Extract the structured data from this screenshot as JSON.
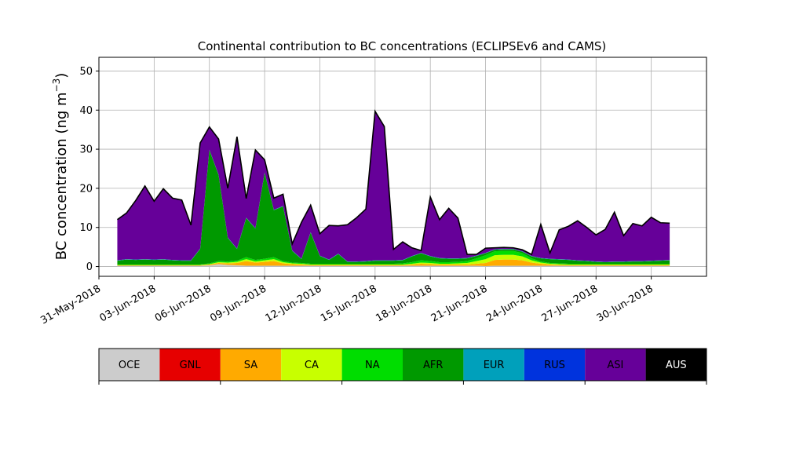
{
  "chart_data": {
    "type": "area",
    "title": "Continental contribution to BC concentrations (ECLIPSEv6 and CAMS)",
    "ylabel_main": "BC concentration (ng m",
    "ylabel_exp": "−3",
    "ylabel_close": ")",
    "xlabel": "",
    "x_range": [
      "2018-05-31",
      "2018-07-03"
    ],
    "ylim": [
      -2.5,
      53.5
    ],
    "grid": true,
    "stacked": true,
    "x_ticks": [
      "31-May-2018",
      "03-Jun-2018",
      "06-Jun-2018",
      "09-Jun-2018",
      "12-Jun-2018",
      "15-Jun-2018",
      "18-Jun-2018",
      "21-Jun-2018",
      "24-Jun-2018",
      "27-Jun-2018",
      "30-Jun-2018"
    ],
    "y_ticks": [
      0,
      10,
      20,
      30,
      40,
      50
    ],
    "x": [
      "2018-06-01",
      "2018-06-01 12:00",
      "2018-06-02",
      "2018-06-02 12:00",
      "2018-06-03",
      "2018-06-03 12:00",
      "2018-06-04",
      "2018-06-04 12:00",
      "2018-06-05",
      "2018-06-05 12:00",
      "2018-06-06",
      "2018-06-06 12:00",
      "2018-06-07",
      "2018-06-07 12:00",
      "2018-06-08",
      "2018-06-08 12:00",
      "2018-06-09",
      "2018-06-09 12:00",
      "2018-06-10",
      "2018-06-10 12:00",
      "2018-06-11",
      "2018-06-11 12:00",
      "2018-06-12",
      "2018-06-12 12:00",
      "2018-06-13",
      "2018-06-13 12:00",
      "2018-06-14",
      "2018-06-14 12:00",
      "2018-06-15",
      "2018-06-15 12:00",
      "2018-06-16",
      "2018-06-16 12:00",
      "2018-06-17",
      "2018-06-17 12:00",
      "2018-06-18",
      "2018-06-18 12:00",
      "2018-06-19",
      "2018-06-19 12:00",
      "2018-06-20",
      "2018-06-20 12:00",
      "2018-06-21",
      "2018-06-21 12:00",
      "2018-06-22",
      "2018-06-22 12:00",
      "2018-06-23",
      "2018-06-23 12:00",
      "2018-06-24",
      "2018-06-24 12:00",
      "2018-06-25",
      "2018-06-25 12:00",
      "2018-06-26",
      "2018-06-26 12:00",
      "2018-06-27",
      "2018-06-27 12:00",
      "2018-06-28",
      "2018-06-28 12:00",
      "2018-06-29",
      "2018-06-29 12:00",
      "2018-06-30",
      "2018-06-30 12:00",
      "2018-07-01"
    ],
    "series": [
      {
        "name": "OCE",
        "color": "#cccccc",
        "values": [
          0.2,
          0.2,
          0.2,
          0.2,
          0.2,
          0.2,
          0.2,
          0.2,
          0.2,
          0.2,
          0.3,
          0.6,
          0.4,
          0.3,
          0.2,
          0.2,
          0.2,
          0.2,
          0.2,
          0.2,
          0.2,
          0.2,
          0.2,
          0.2,
          0.2,
          0.2,
          0.2,
          0.2,
          0.2,
          0.2,
          0.2,
          0.2,
          0.2,
          0.2,
          0.2,
          0.2,
          0.2,
          0.2,
          0.2,
          0.2,
          0.1,
          0.2,
          0.2,
          0.2,
          0.2,
          0.2,
          0.2,
          0.2,
          0.2,
          0.2,
          0.2,
          0.2,
          0.2,
          0.2,
          0.2,
          0.2,
          0.2,
          0.2,
          0.2,
          0.2,
          0.2
        ]
      },
      {
        "name": "GNL",
        "color": "#e60000",
        "values": [
          0,
          0,
          0,
          0,
          0,
          0,
          0,
          0,
          0,
          0,
          0,
          0,
          0,
          0,
          0,
          0,
          0,
          0,
          0,
          0,
          0,
          0,
          0,
          0,
          0,
          0,
          0,
          0,
          0,
          0,
          0,
          0,
          0,
          0,
          0,
          0,
          0,
          0,
          0,
          0,
          0,
          0,
          0,
          0,
          0,
          0,
          0,
          0,
          0,
          0,
          0,
          0,
          0,
          0,
          0,
          0,
          0,
          0,
          0,
          0,
          0
        ]
      },
      {
        "name": "SA",
        "color": "#ffaa00",
        "values": [
          0.1,
          0.1,
          0.1,
          0.1,
          0.1,
          0.1,
          0.1,
          0.1,
          0.1,
          0.1,
          0.2,
          0.3,
          0.4,
          0.6,
          1.2,
          0.8,
          1.0,
          1.2,
          0.6,
          0.4,
          0.3,
          0.2,
          0.2,
          0.2,
          0.2,
          0.2,
          0.2,
          0.2,
          0.2,
          0.2,
          0.2,
          0.2,
          0.3,
          0.5,
          0.4,
          0.3,
          0.3,
          0.3,
          0.3,
          0.5,
          0.8,
          1.5,
          1.6,
          1.6,
          1.4,
          0.8,
          0.5,
          0.3,
          0.2,
          0.2,
          0.2,
          0.2,
          0.2,
          0.2,
          0.2,
          0.2,
          0.2,
          0.2,
          0.2,
          0.2,
          0.2
        ]
      },
      {
        "name": "CA",
        "color": "#c8ff00",
        "values": [
          0.1,
          0.1,
          0.1,
          0.1,
          0.1,
          0.1,
          0.1,
          0.1,
          0.1,
          0.1,
          0.1,
          0.2,
          0.2,
          0.3,
          0.5,
          0.3,
          0.4,
          0.5,
          0.3,
          0.2,
          0.2,
          0.1,
          0.1,
          0.1,
          0.1,
          0.1,
          0.1,
          0.1,
          0.1,
          0.1,
          0.1,
          0.1,
          0.2,
          0.3,
          0.3,
          0.2,
          0.2,
          0.3,
          0.4,
          0.7,
          1.0,
          1.2,
          1.2,
          1.2,
          1.0,
          0.6,
          0.3,
          0.2,
          0.2,
          0.1,
          0.1,
          0.1,
          0.1,
          0.1,
          0.1,
          0.1,
          0.1,
          0.1,
          0.1,
          0.1,
          0.1
        ]
      },
      {
        "name": "NA",
        "color": "#00dd00",
        "values": [
          0.1,
          0.1,
          0.1,
          0.1,
          0.1,
          0.1,
          0.1,
          0.1,
          0.1,
          0.1,
          0.2,
          0.3,
          0.3,
          0.3,
          0.5,
          0.4,
          0.4,
          0.5,
          0.3,
          0.2,
          0.2,
          0.2,
          0.2,
          0.2,
          0.2,
          0.2,
          0.2,
          0.2,
          0.2,
          0.2,
          0.2,
          0.3,
          0.4,
          0.6,
          0.5,
          0.4,
          0.4,
          0.4,
          0.5,
          0.7,
          1.0,
          1.0,
          1.0,
          1.0,
          0.8,
          0.5,
          0.3,
          0.2,
          0.2,
          0.2,
          0.2,
          0.2,
          0.2,
          0.2,
          0.2,
          0.2,
          0.2,
          0.2,
          0.2,
          0.2,
          0.2
        ]
      },
      {
        "name": "AFR",
        "color": "#009900",
        "values": [
          1.0,
          1.3,
          1.2,
          1.3,
          1.2,
          1.3,
          1.1,
          1.0,
          1.0,
          4.0,
          29.0,
          22.0,
          6.0,
          3.0,
          10.0,
          8.0,
          22.0,
          12.0,
          14.0,
          3.0,
          1.0,
          8.0,
          2.0,
          1.0,
          2.5,
          0.5,
          0.5,
          0.6,
          0.8,
          0.8,
          0.8,
          0.8,
          1.5,
          1.8,
          1.2,
          1.0,
          0.9,
          0.8,
          0.7,
          0.6,
          0.5,
          0.4,
          0.4,
          0.4,
          0.4,
          0.5,
          0.8,
          1.0,
          1.0,
          1.0,
          0.8,
          0.7,
          0.5,
          0.4,
          0.5,
          0.5,
          0.6,
          0.6,
          0.7,
          0.8,
          0.9
        ]
      },
      {
        "name": "EUR",
        "color": "#00a0bb",
        "values": [
          0.1,
          0.1,
          0.1,
          0.1,
          0.1,
          0.1,
          0.1,
          0.1,
          0.1,
          0.1,
          0.1,
          0.1,
          0.1,
          0.1,
          0.1,
          0.1,
          0.1,
          0.1,
          0.1,
          0.1,
          0.1,
          0.1,
          0.1,
          0.1,
          0.1,
          0.1,
          0.1,
          0.1,
          0.1,
          0.1,
          0.1,
          0.1,
          0.1,
          0.1,
          0.1,
          0.1,
          0.1,
          0.1,
          0.1,
          0.1,
          0.1,
          0.1,
          0.1,
          0.1,
          0.1,
          0.1,
          0.1,
          0.1,
          0.1,
          0.1,
          0.1,
          0.1,
          0.1,
          0.1,
          0.1,
          0.1,
          0.1,
          0.1,
          0.1,
          0.1,
          0.1
        ]
      },
      {
        "name": "RUS",
        "color": "#0033dd",
        "values": [
          0,
          0,
          0,
          0,
          0,
          0,
          0,
          0,
          0,
          0,
          0,
          0,
          0,
          0,
          0,
          0,
          0,
          0,
          0,
          0,
          0,
          0,
          0,
          0,
          0,
          0,
          0,
          0,
          0,
          0,
          0,
          0,
          0,
          0,
          0,
          0,
          0,
          0,
          0,
          0,
          0,
          0,
          0,
          0,
          0,
          0,
          0,
          0,
          0,
          0,
          0,
          0,
          0,
          0,
          0,
          0,
          0,
          0,
          0,
          0,
          0
        ]
      },
      {
        "name": "ASI",
        "color": "#660099",
        "values": [
          10.4,
          11.8,
          15.1,
          18.7,
          14.9,
          18.0,
          15.8,
          15.4,
          9.0,
          27.0,
          5.8,
          9.1,
          12.6,
          28.6,
          4.9,
          20.0,
          3.2,
          3.0,
          3.0,
          1.7,
          9.3,
          6.9,
          5.6,
          8.7,
          7.1,
          9.4,
          11.2,
          13.3,
          38.1,
          34.2,
          2.8,
          4.6,
          2.1,
          0.6,
          15.1,
          9.8,
          12.8,
          10.3,
          0.9,
          0.3,
          1.2,
          0.4,
          0.4,
          0.3,
          0.4,
          0.4,
          8.6,
          1.5,
          7.5,
          8.5,
          10.1,
          8.5,
          6.8,
          8.3,
          12.6,
          6.6,
          9.6,
          9.0,
          11.1,
          9.6,
          9.4
        ]
      },
      {
        "name": "AUS",
        "color": "#000000",
        "values": [
          0,
          0,
          0,
          0,
          0,
          0,
          0,
          0,
          0,
          0,
          0,
          0,
          0,
          0,
          0,
          0,
          0,
          0,
          0,
          0,
          0,
          0,
          0,
          0,
          0,
          0,
          0,
          0,
          0,
          0,
          0,
          0,
          0,
          0,
          0,
          0,
          0,
          0,
          0,
          0,
          0,
          0,
          0,
          0,
          0,
          0,
          0,
          0,
          0,
          0,
          0,
          0,
          0,
          0,
          0,
          0,
          0,
          0,
          0,
          0,
          0
        ]
      }
    ],
    "legend": {
      "placement": "bottom colorbar",
      "labels": [
        "OCE",
        "GNL",
        "SA",
        "CA",
        "NA",
        "AFR",
        "EUR",
        "RUS",
        "ASI",
        "AUS"
      ]
    }
  }
}
